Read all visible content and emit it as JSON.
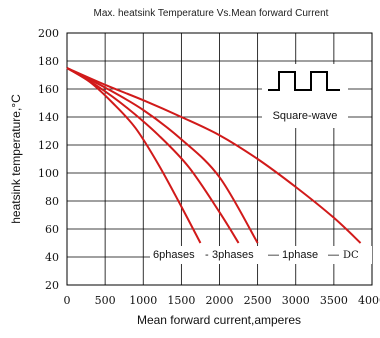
{
  "chart_data": {
    "type": "line",
    "title": "Max. heatsink Temperature Vs.Mean forward Current",
    "xlabel": "Mean forward current,amperes",
    "ylabel": "heatsink temperature,°C",
    "xlim": [
      0,
      4000
    ],
    "ylim": [
      20,
      200
    ],
    "xticks": [
      0,
      500,
      1000,
      1500,
      2000,
      2500,
      3000,
      3500,
      4000
    ],
    "yticks": [
      20,
      40,
      60,
      80,
      100,
      120,
      140,
      160,
      180,
      200
    ],
    "grid": true,
    "series": [
      {
        "name": "6phases",
        "color": "#d11a1a",
        "x": [
          0,
          300,
          600,
          900,
          1200,
          1500,
          1750
        ],
        "y": [
          175,
          165,
          150,
          132,
          106,
          76,
          50
        ]
      },
      {
        "name": "3phases",
        "color": "#d11a1a",
        "x": [
          0,
          400,
          800,
          1200,
          1600,
          2000,
          2250
        ],
        "y": [
          175,
          162,
          146,
          127,
          104,
          72,
          50
        ]
      },
      {
        "name": "1phase",
        "color": "#d11a1a",
        "x": [
          0,
          500,
          1000,
          1500,
          2000,
          2500
        ],
        "y": [
          175,
          161,
          145,
          124,
          97,
          50
        ]
      },
      {
        "name": "DC",
        "color": "#d11a1a",
        "x": [
          0,
          500,
          1000,
          1500,
          2000,
          2500,
          3000,
          3500,
          3850
        ],
        "y": [
          175,
          163,
          152,
          140,
          127,
          110,
          90,
          68,
          50
        ]
      }
    ],
    "annotations": {
      "series_labels": [
        "6phases",
        "3phases",
        "1phase",
        "DC"
      ],
      "label_separators": [
        "-",
        "—",
        "—"
      ],
      "waveform_label": "Square-wave"
    }
  }
}
